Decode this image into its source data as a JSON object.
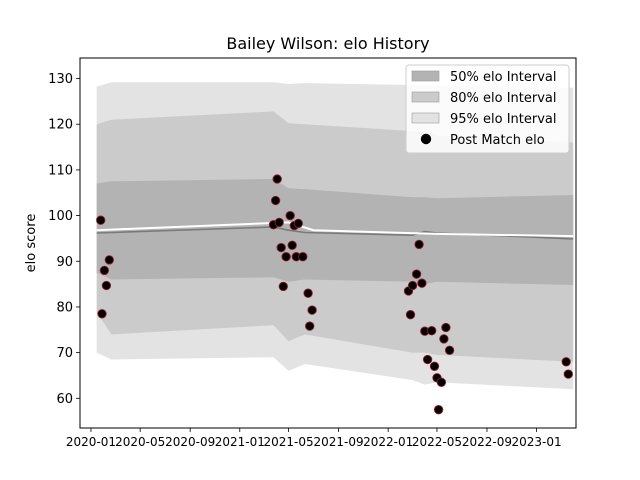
{
  "chart_data": {
    "type": "scatter",
    "title": "Bailey Wilson: elo History",
    "xlabel": "",
    "ylabel": "elo score",
    "xlim": [
      "2019-12-05",
      "2023-04-08"
    ],
    "ylim": [
      53.5,
      134.5
    ],
    "x_ticks": [
      "2020-01",
      "2020-05",
      "2020-09",
      "2021-01",
      "2021-05",
      "2021-09",
      "2022-01",
      "2022-05",
      "2022-09",
      "2023-01"
    ],
    "y_ticks": [
      60,
      70,
      80,
      90,
      100,
      110,
      120,
      130
    ],
    "grid": false,
    "legend": {
      "position": "top-right",
      "entries": [
        "50% elo Interval",
        "80% elo Interval",
        "95% elo Interval",
        "Post Match elo"
      ]
    },
    "colors": {
      "band_50": "#b3b3b3",
      "band_80": "#cbcbcb",
      "band_95": "#e3e3e3",
      "median_line": "#7a7a7a",
      "mean_line": "#ffffff",
      "point_fill": "#000000",
      "point_edge": "#8b1a2b"
    },
    "intervals": {
      "x": [
        "2020-01-15",
        "2020-02-20",
        "2021-03-25",
        "2021-05-01",
        "2021-06-10",
        "2022-03-01",
        "2022-04-01",
        "2022-05-01",
        "2023-04-01"
      ],
      "median": [
        96.2,
        96.3,
        97.5,
        96.8,
        96.3,
        95.7,
        96.5,
        96.2,
        94.9
      ],
      "p95_high": [
        128.2,
        129.2,
        129.2,
        128.8,
        129.0,
        128.6,
        128.5,
        128.4,
        128.0
      ],
      "p95_low": [
        70.0,
        68.5,
        69.0,
        66.0,
        67.5,
        64.0,
        63.0,
        63.5,
        62.0
      ],
      "p80_high": [
        120.0,
        121.0,
        122.8,
        120.2,
        120.0,
        118.5,
        118.5,
        117.5,
        116.0
      ],
      "p80_low": [
        78.8,
        74.0,
        76.0,
        72.5,
        74.0,
        70.0,
        70.0,
        69.5,
        68.0
      ],
      "p50_high": [
        107.0,
        107.5,
        108.0,
        106.0,
        105.8,
        104.0,
        104.0,
        103.8,
        104.5
      ],
      "p50_low": [
        87.5,
        86.0,
        86.5,
        85.5,
        86.0,
        85.5,
        85.0,
        85.5,
        84.8
      ]
    },
    "mean_line": {
      "x": [
        "2020-01-15",
        "2021-05-01",
        "2021-07-01",
        "2022-05-01",
        "2023-04-01"
      ],
      "y": [
        96.8,
        98.5,
        96.8,
        96.0,
        95.5
      ]
    },
    "series": [
      {
        "name": "Post Match elo",
        "points": [
          [
            "2020-01-25",
            99.0
          ],
          [
            "2020-01-28",
            78.5
          ],
          [
            "2020-02-03",
            88.0
          ],
          [
            "2020-02-08",
            84.7
          ],
          [
            "2020-02-15",
            90.3
          ],
          [
            "2021-03-25",
            98.0
          ],
          [
            "2021-03-30",
            103.3
          ],
          [
            "2021-04-03",
            108.0
          ],
          [
            "2021-04-08",
            98.5
          ],
          [
            "2021-04-13",
            93.0
          ],
          [
            "2021-04-18",
            84.5
          ],
          [
            "2021-04-25",
            91.0
          ],
          [
            "2021-05-05",
            100.0
          ],
          [
            "2021-05-10",
            93.5
          ],
          [
            "2021-05-15",
            97.8
          ],
          [
            "2021-05-20",
            91.0
          ],
          [
            "2021-05-25",
            98.3
          ],
          [
            "2021-06-05",
            91.0
          ],
          [
            "2021-06-18",
            83.0
          ],
          [
            "2021-06-22",
            75.8
          ],
          [
            "2021-06-28",
            79.3
          ],
          [
            "2022-02-20",
            83.5
          ],
          [
            "2022-02-25",
            78.3
          ],
          [
            "2022-03-02",
            84.7
          ],
          [
            "2022-03-12",
            87.2
          ],
          [
            "2022-03-18",
            93.7
          ],
          [
            "2022-03-25",
            85.2
          ],
          [
            "2022-04-01",
            74.7
          ],
          [
            "2022-04-08",
            68.5
          ],
          [
            "2022-04-18",
            74.8
          ],
          [
            "2022-04-25",
            67.0
          ],
          [
            "2022-05-01",
            64.5
          ],
          [
            "2022-05-05",
            57.5
          ],
          [
            "2022-05-12",
            63.5
          ],
          [
            "2022-05-18",
            73.0
          ],
          [
            "2022-05-23",
            75.5
          ],
          [
            "2022-06-01",
            70.5
          ],
          [
            "2023-03-15",
            68.0
          ],
          [
            "2023-03-20",
            65.3
          ]
        ]
      }
    ]
  }
}
